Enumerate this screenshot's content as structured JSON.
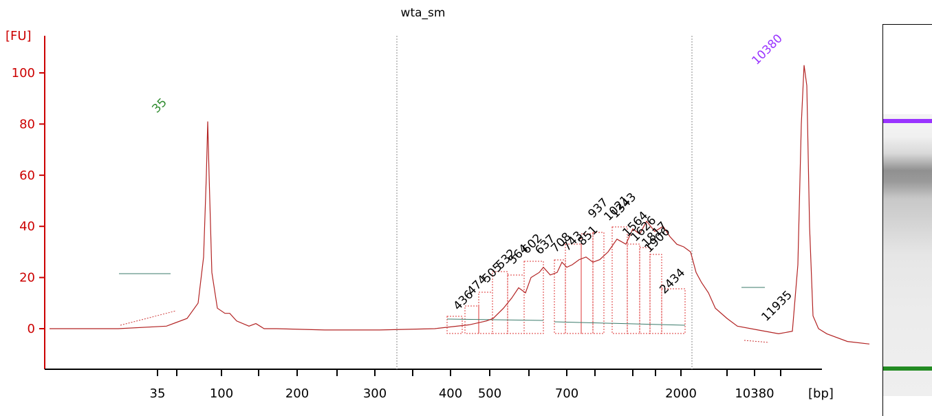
{
  "chart_data": {
    "type": "line",
    "title": "wta_sm",
    "ylabel": "[FU]",
    "xlabel": "[bp]",
    "y_ticks": [
      0,
      20,
      40,
      60,
      80,
      100
    ],
    "ylim": [
      -17,
      115
    ],
    "x_tick_labels": [
      "35",
      "100",
      "200",
      "300",
      "400",
      "500",
      "700",
      "2000",
      "10380"
    ],
    "grid": false,
    "series": [
      {
        "color": "#b22222",
        "trace_index": [
          0,
          100,
          170,
          200,
          216,
          224,
          228,
          230,
          232,
          236,
          244,
          255,
          262,
          272,
          290,
          300,
          312,
          330,
          400,
          480,
          560,
          610,
          635,
          645,
          660,
          672,
          682,
          692,
          700,
          712,
          718,
          728,
          738,
          745,
          752,
          760,
          770,
          780,
          790,
          800,
          812,
          825,
          838,
          848,
          858,
          868,
          880,
          892,
          902,
          912,
          922,
          932,
          940,
          948,
          958,
          968,
          985,
          1000,
          1030,
          1060,
          1080,
          1088,
          1093,
          1097,
          1101,
          1105,
          1110,
          1118,
          1130,
          1160,
          1192
        ],
        "y": [
          0,
          0,
          1,
          4,
          10,
          28,
          60,
          81,
          60,
          22,
          8,
          6,
          6,
          3,
          1,
          2,
          0,
          0,
          -0.5,
          -0.5,
          0,
          1.5,
          3,
          4,
          8,
          12,
          16,
          14,
          20,
          22,
          24,
          21,
          22,
          26,
          24,
          25,
          27,
          28,
          26,
          27,
          30,
          35,
          33,
          39,
          37,
          42,
          38,
          40,
          36,
          33,
          32,
          30,
          22,
          18,
          14,
          8,
          4,
          1,
          -0.5,
          -2,
          -1,
          25,
          80,
          103,
          95,
          40,
          5,
          0,
          -2,
          -5,
          -6
        ]
      }
    ],
    "peaks": [
      {
        "label": "35",
        "color": "#2e8b2e"
      },
      {
        "label": "10380",
        "color": "#9933ff"
      },
      {
        "label": "436",
        "color": "#000000"
      },
      {
        "label": "474",
        "color": "#000000"
      },
      {
        "label": "505",
        "color": "#000000"
      },
      {
        "label": "532",
        "color": "#000000"
      },
      {
        "label": "564",
        "color": "#000000"
      },
      {
        "label": "602",
        "color": "#000000"
      },
      {
        "label": "637",
        "color": "#000000"
      },
      {
        "label": "708",
        "color": "#000000"
      },
      {
        "label": "743",
        "color": "#000000"
      },
      {
        "label": "851",
        "color": "#000000"
      },
      {
        "label": "937",
        "color": "#000000"
      },
      {
        "label": "1021",
        "color": "#000000"
      },
      {
        "label": "1343",
        "color": "#000000"
      },
      {
        "label": "1564",
        "color": "#000000"
      },
      {
        "label": "1626",
        "color": "#000000"
      },
      {
        "label": "1817",
        "color": "#000000"
      },
      {
        "label": "1906",
        "color": "#000000"
      },
      {
        "label": "2434",
        "color": "#000000"
      },
      {
        "label": "11935",
        "color": "#000000"
      }
    ],
    "gel_bands": [
      {
        "name": "upper-marker",
        "color": "#9933ff"
      },
      {
        "name": "lower-marker",
        "color": "#228b22"
      }
    ]
  }
}
